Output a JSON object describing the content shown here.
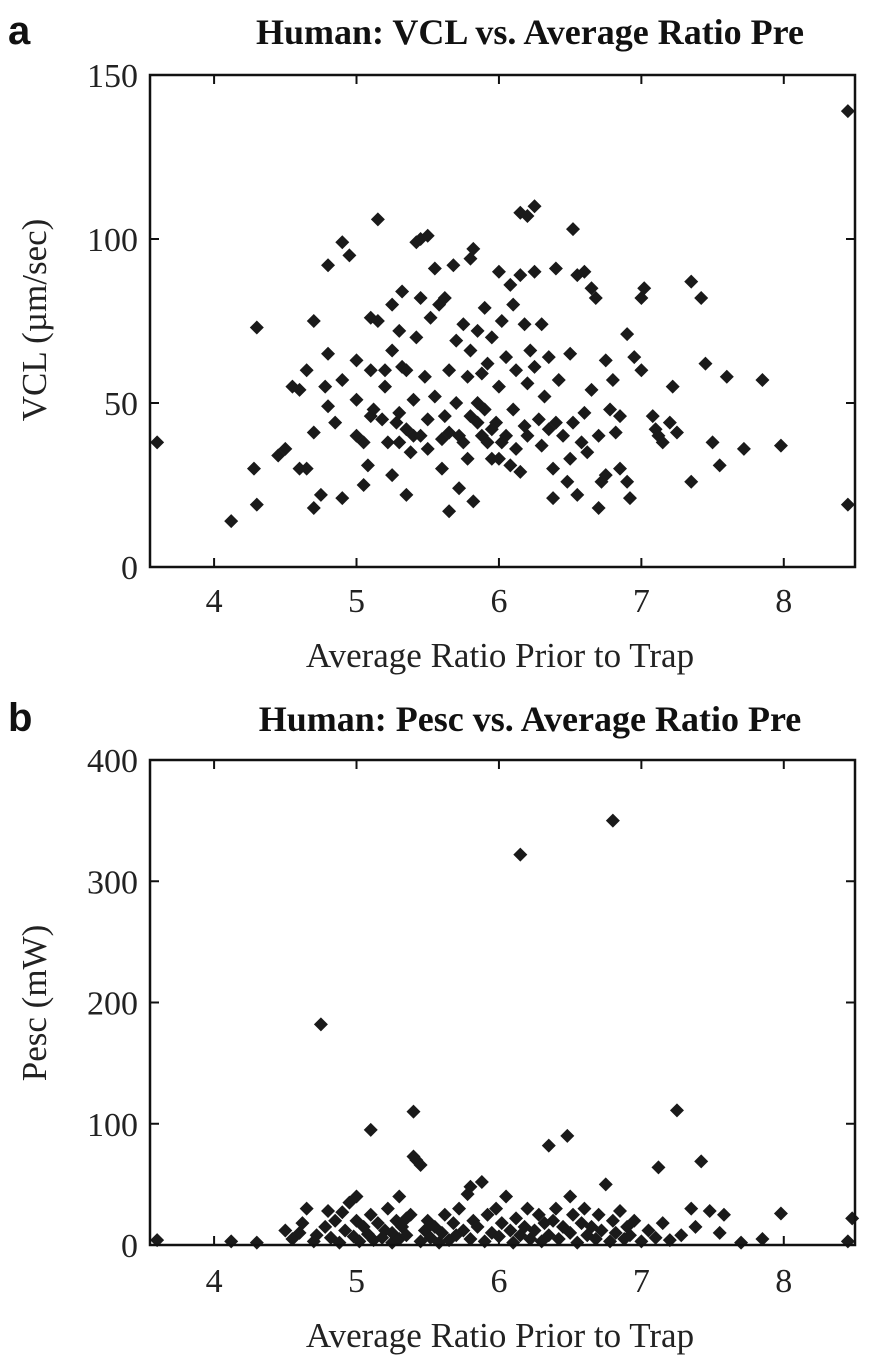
{
  "panel_labels": [
    "a",
    "b"
  ],
  "chart_data": [
    {
      "type": "scatter",
      "title": "Human: VCL vs. Average Ratio Pre",
      "xlabel": "Average Ratio Prior to Trap",
      "ylabel": "VCL (µm/sec)",
      "xlim": [
        3.55,
        8.5
      ],
      "ylim": [
        0,
        150
      ],
      "xticks": [
        "4",
        "5",
        "6",
        "7",
        "8"
      ],
      "yticks": [
        "0",
        "50",
        "100",
        "150"
      ],
      "grid": false,
      "marker": "diamond",
      "color": "#1a1a1a",
      "points": [
        [
          3.6,
          38
        ],
        [
          4.12,
          14
        ],
        [
          4.28,
          30
        ],
        [
          4.3,
          19
        ],
        [
          4.3,
          73
        ],
        [
          4.45,
          34
        ],
        [
          4.5,
          36
        ],
        [
          4.55,
          55
        ],
        [
          4.6,
          54
        ],
        [
          4.6,
          30
        ],
        [
          4.65,
          60
        ],
        [
          4.65,
          30
        ],
        [
          4.7,
          41
        ],
        [
          4.7,
          75
        ],
        [
          4.7,
          18
        ],
        [
          4.75,
          22
        ],
        [
          4.78,
          55
        ],
        [
          4.8,
          65
        ],
        [
          4.8,
          49
        ],
        [
          4.8,
          92
        ],
        [
          4.85,
          44
        ],
        [
          4.9,
          57
        ],
        [
          4.9,
          21
        ],
        [
          4.9,
          99
        ],
        [
          4.95,
          95
        ],
        [
          5.0,
          40
        ],
        [
          5.0,
          51
        ],
        [
          5.0,
          63
        ],
        [
          5.05,
          38
        ],
        [
          5.05,
          25
        ],
        [
          5.08,
          31
        ],
        [
          5.1,
          60
        ],
        [
          5.1,
          76
        ],
        [
          5.1,
          46
        ],
        [
          5.12,
          48
        ],
        [
          5.15,
          106
        ],
        [
          5.15,
          75
        ],
        [
          5.18,
          45
        ],
        [
          5.2,
          60
        ],
        [
          5.2,
          55
        ],
        [
          5.22,
          38
        ],
        [
          5.25,
          28
        ],
        [
          5.25,
          66
        ],
        [
          5.25,
          80
        ],
        [
          5.28,
          44
        ],
        [
          5.3,
          72
        ],
        [
          5.3,
          47
        ],
        [
          5.3,
          38
        ],
        [
          5.32,
          84
        ],
        [
          5.32,
          61
        ],
        [
          5.35,
          60
        ],
        [
          5.35,
          42
        ],
        [
          5.35,
          22
        ],
        [
          5.38,
          35
        ],
        [
          5.4,
          40
        ],
        [
          5.4,
          51
        ],
        [
          5.42,
          70
        ],
        [
          5.42,
          99
        ],
        [
          5.45,
          82
        ],
        [
          5.45,
          100
        ],
        [
          5.45,
          40
        ],
        [
          5.48,
          58
        ],
        [
          5.5,
          45
        ],
        [
          5.5,
          36
        ],
        [
          5.5,
          101
        ],
        [
          5.52,
          76
        ],
        [
          5.55,
          91
        ],
        [
          5.55,
          52
        ],
        [
          5.58,
          80
        ],
        [
          5.6,
          39
        ],
        [
          5.6,
          30
        ],
        [
          5.62,
          82
        ],
        [
          5.62,
          46
        ],
        [
          5.65,
          17
        ],
        [
          5.65,
          41
        ],
        [
          5.65,
          60
        ],
        [
          5.68,
          92
        ],
        [
          5.7,
          69
        ],
        [
          5.7,
          50
        ],
        [
          5.72,
          24
        ],
        [
          5.72,
          40
        ],
        [
          5.75,
          74
        ],
        [
          5.75,
          38
        ],
        [
          5.78,
          33
        ],
        [
          5.78,
          58
        ],
        [
          5.8,
          46
        ],
        [
          5.8,
          66
        ],
        [
          5.8,
          94
        ],
        [
          5.82,
          20
        ],
        [
          5.82,
          97
        ],
        [
          5.85,
          44
        ],
        [
          5.85,
          72
        ],
        [
          5.85,
          50
        ],
        [
          5.88,
          40
        ],
        [
          5.88,
          59
        ],
        [
          5.9,
          79
        ],
        [
          5.9,
          48
        ],
        [
          5.92,
          62
        ],
        [
          5.92,
          38
        ],
        [
          5.95,
          42
        ],
        [
          5.95,
          70
        ],
        [
          5.95,
          33
        ],
        [
          5.98,
          44
        ],
        [
          6.0,
          90
        ],
        [
          6.0,
          55
        ],
        [
          6.0,
          33
        ],
        [
          6.02,
          75
        ],
        [
          6.02,
          38
        ],
        [
          6.05,
          40
        ],
        [
          6.05,
          64
        ],
        [
          6.08,
          86
        ],
        [
          6.08,
          31
        ],
        [
          6.1,
          80
        ],
        [
          6.1,
          48
        ],
        [
          6.12,
          36
        ],
        [
          6.12,
          60
        ],
        [
          6.15,
          29
        ],
        [
          6.15,
          89
        ],
        [
          6.15,
          108
        ],
        [
          6.18,
          74
        ],
        [
          6.18,
          43
        ],
        [
          6.2,
          107
        ],
        [
          6.2,
          56
        ],
        [
          6.2,
          40
        ],
        [
          6.22,
          66
        ],
        [
          6.25,
          110
        ],
        [
          6.25,
          90
        ],
        [
          6.25,
          61
        ],
        [
          6.28,
          45
        ],
        [
          6.3,
          37
        ],
        [
          6.3,
          74
        ],
        [
          6.32,
          52
        ],
        [
          6.35,
          42
        ],
        [
          6.35,
          64
        ],
        [
          6.38,
          30
        ],
        [
          6.38,
          21
        ],
        [
          6.4,
          91
        ],
        [
          6.4,
          44
        ],
        [
          6.42,
          57
        ],
        [
          6.45,
          40
        ],
        [
          6.48,
          26
        ],
        [
          6.5,
          33
        ],
        [
          6.5,
          65
        ],
        [
          6.52,
          103
        ],
        [
          6.52,
          44
        ],
        [
          6.55,
          89
        ],
        [
          6.55,
          22
        ],
        [
          6.58,
          38
        ],
        [
          6.6,
          90
        ],
        [
          6.6,
          47
        ],
        [
          6.62,
          35
        ],
        [
          6.65,
          85
        ],
        [
          6.65,
          54
        ],
        [
          6.68,
          82
        ],
        [
          6.7,
          18
        ],
        [
          6.7,
          40
        ],
        [
          6.72,
          26
        ],
        [
          6.75,
          63
        ],
        [
          6.75,
          28
        ],
        [
          6.78,
          48
        ],
        [
          6.8,
          57
        ],
        [
          6.82,
          41
        ],
        [
          6.85,
          30
        ],
        [
          6.85,
          46
        ],
        [
          6.9,
          71
        ],
        [
          6.9,
          26
        ],
        [
          6.92,
          21
        ],
        [
          6.95,
          64
        ],
        [
          7.0,
          60
        ],
        [
          7.0,
          82
        ],
        [
          7.02,
          85
        ],
        [
          7.08,
          46
        ],
        [
          7.1,
          42
        ],
        [
          7.12,
          40
        ],
        [
          7.15,
          38
        ],
        [
          7.2,
          44
        ],
        [
          7.22,
          55
        ],
        [
          7.25,
          41
        ],
        [
          7.35,
          87
        ],
        [
          7.35,
          26
        ],
        [
          7.42,
          82
        ],
        [
          7.45,
          62
        ],
        [
          7.5,
          38
        ],
        [
          7.55,
          31
        ],
        [
          7.6,
          58
        ],
        [
          7.72,
          36
        ],
        [
          7.85,
          57
        ],
        [
          7.98,
          37
        ],
        [
          8.45,
          139
        ],
        [
          8.45,
          19
        ]
      ]
    },
    {
      "type": "scatter",
      "title": "Human: Pesc vs. Average Ratio Pre",
      "xlabel": "Average Ratio Prior to Trap",
      "ylabel": "Pesc (mW)",
      "xlim": [
        3.55,
        8.5
      ],
      "ylim": [
        0,
        400
      ],
      "xticks": [
        "4",
        "5",
        "6",
        "7",
        "8"
      ],
      "yticks": [
        "0",
        "100",
        "200",
        "300",
        "400"
      ],
      "grid": false,
      "marker": "diamond",
      "color": "#1a1a1a",
      "points": [
        [
          3.6,
          4
        ],
        [
          4.12,
          3
        ],
        [
          4.3,
          2
        ],
        [
          4.5,
          12
        ],
        [
          4.55,
          5
        ],
        [
          4.6,
          10
        ],
        [
          4.62,
          18
        ],
        [
          4.65,
          30
        ],
        [
          4.7,
          3
        ],
        [
          4.72,
          8
        ],
        [
          4.75,
          182
        ],
        [
          4.78,
          15
        ],
        [
          4.8,
          28
        ],
        [
          4.82,
          6
        ],
        [
          4.85,
          20
        ],
        [
          4.88,
          2
        ],
        [
          4.9,
          27
        ],
        [
          4.92,
          12
        ],
        [
          4.95,
          35
        ],
        [
          4.98,
          7
        ],
        [
          5.0,
          40
        ],
        [
          5.0,
          20
        ],
        [
          5.02,
          3
        ],
        [
          5.05,
          15
        ],
        [
          5.08,
          9
        ],
        [
          5.1,
          95
        ],
        [
          5.1,
          25
        ],
        [
          5.12,
          4
        ],
        [
          5.15,
          18
        ],
        [
          5.18,
          6
        ],
        [
          5.2,
          12
        ],
        [
          5.22,
          30
        ],
        [
          5.25,
          2
        ],
        [
          5.25,
          10
        ],
        [
          5.28,
          20
        ],
        [
          5.3,
          40
        ],
        [
          5.3,
          5
        ],
        [
          5.32,
          15
        ],
        [
          5.35,
          8
        ],
        [
          5.38,
          25
        ],
        [
          5.4,
          110
        ],
        [
          5.4,
          73
        ],
        [
          5.42,
          70
        ],
        [
          5.45,
          66
        ],
        [
          5.45,
          3
        ],
        [
          5.48,
          12
        ],
        [
          5.5,
          20
        ],
        [
          5.52,
          6
        ],
        [
          5.55,
          15
        ],
        [
          5.58,
          2
        ],
        [
          5.6,
          10
        ],
        [
          5.62,
          25
        ],
        [
          5.65,
          4
        ],
        [
          5.68,
          18
        ],
        [
          5.7,
          8
        ],
        [
          5.72,
          30
        ],
        [
          5.75,
          12
        ],
        [
          5.78,
          42
        ],
        [
          5.8,
          48
        ],
        [
          5.8,
          5
        ],
        [
          5.82,
          20
        ],
        [
          5.85,
          15
        ],
        [
          5.88,
          52
        ],
        [
          5.9,
          3
        ],
        [
          5.92,
          25
        ],
        [
          5.95,
          10
        ],
        [
          5.98,
          30
        ],
        [
          6.0,
          7
        ],
        [
          6.02,
          18
        ],
        [
          6.05,
          40
        ],
        [
          6.08,
          12
        ],
        [
          6.1,
          2
        ],
        [
          6.12,
          22
        ],
        [
          6.15,
          322
        ],
        [
          6.15,
          8
        ],
        [
          6.18,
          15
        ],
        [
          6.2,
          30
        ],
        [
          6.22,
          5
        ],
        [
          6.25,
          12
        ],
        [
          6.28,
          25
        ],
        [
          6.3,
          3
        ],
        [
          6.32,
          18
        ],
        [
          6.35,
          82
        ],
        [
          6.35,
          8
        ],
        [
          6.38,
          20
        ],
        [
          6.4,
          30
        ],
        [
          6.42,
          5
        ],
        [
          6.45,
          15
        ],
        [
          6.48,
          90
        ],
        [
          6.5,
          40
        ],
        [
          6.5,
          10
        ],
        [
          6.52,
          25
        ],
        [
          6.55,
          2
        ],
        [
          6.58,
          18
        ],
        [
          6.6,
          30
        ],
        [
          6.62,
          8
        ],
        [
          6.65,
          15
        ],
        [
          6.68,
          5
        ],
        [
          6.7,
          25
        ],
        [
          6.72,
          12
        ],
        [
          6.75,
          50
        ],
        [
          6.78,
          3
        ],
        [
          6.8,
          350
        ],
        [
          6.8,
          20
        ],
        [
          6.82,
          10
        ],
        [
          6.85,
          28
        ],
        [
          6.88,
          5
        ],
        [
          6.9,
          15
        ],
        [
          6.92,
          8
        ],
        [
          6.95,
          20
        ],
        [
          7.0,
          3
        ],
        [
          7.05,
          12
        ],
        [
          7.1,
          6
        ],
        [
          7.12,
          64
        ],
        [
          7.15,
          18
        ],
        [
          7.2,
          4
        ],
        [
          7.25,
          111
        ],
        [
          7.28,
          8
        ],
        [
          7.35,
          30
        ],
        [
          7.38,
          15
        ],
        [
          7.42,
          69
        ],
        [
          7.48,
          28
        ],
        [
          7.55,
          10
        ],
        [
          7.58,
          25
        ],
        [
          7.7,
          2
        ],
        [
          7.85,
          5
        ],
        [
          7.98,
          26
        ],
        [
          8.45,
          3
        ],
        [
          8.48,
          22
        ],
        [
          5.35,
          22
        ]
      ]
    }
  ]
}
